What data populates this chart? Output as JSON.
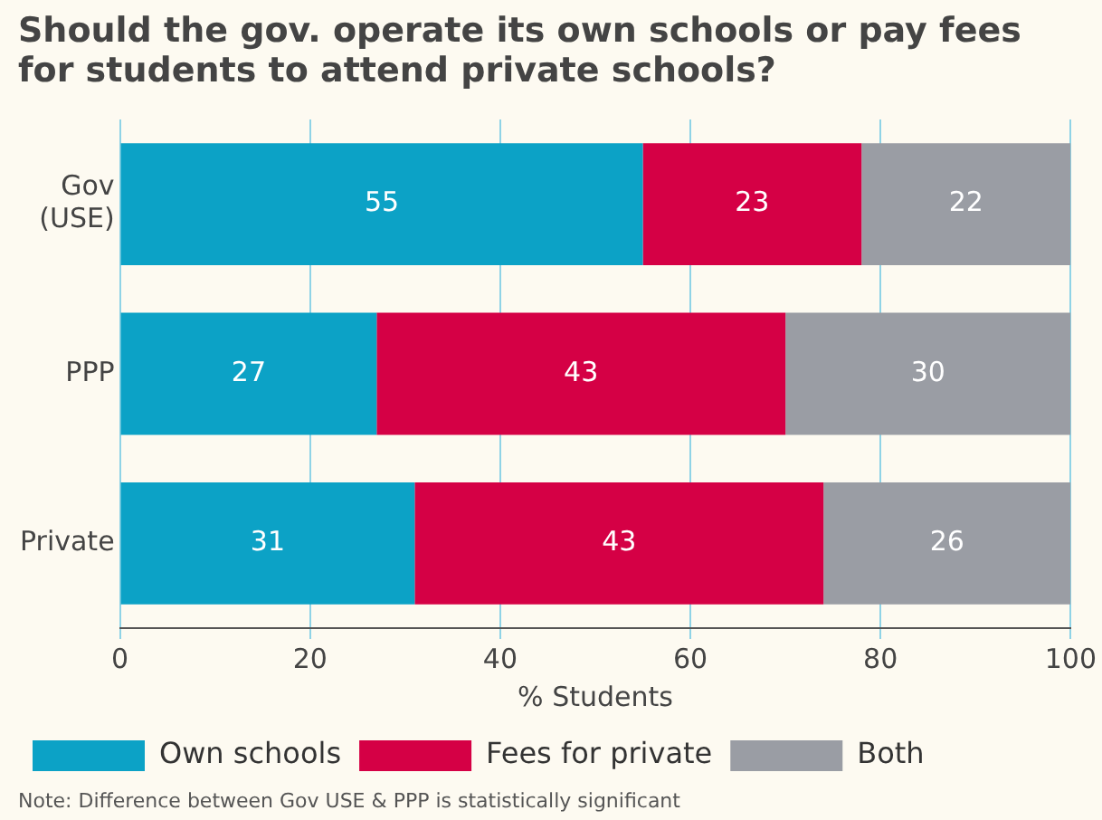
{
  "chart_data": {
    "type": "bar",
    "orientation": "horizontal",
    "stacked": true,
    "title": "Should the gov. operate its own schools or pay fees for students to attend private schools?",
    "categories": [
      "Gov (USE)",
      "PPP",
      "Private"
    ],
    "series": [
      {
        "name": "Own schools",
        "color": "#0ca2c6",
        "values": [
          55,
          27,
          31
        ]
      },
      {
        "name": "Fees for private",
        "color": "#d50045",
        "values": [
          23,
          43,
          43
        ]
      },
      {
        "name": "Both",
        "color": "#9a9da4",
        "values": [
          22,
          30,
          26
        ]
      }
    ],
    "xlim": [
      0,
      100
    ],
    "xticks": [
      0,
      20,
      40,
      60,
      80,
      100
    ],
    "xlabel": "% Students",
    "grid": "x",
    "legend": "bottom",
    "data_labels": true,
    "annotations": [
      "Note: Difference between Gov USE & PPP is statistically significant"
    ]
  }
}
